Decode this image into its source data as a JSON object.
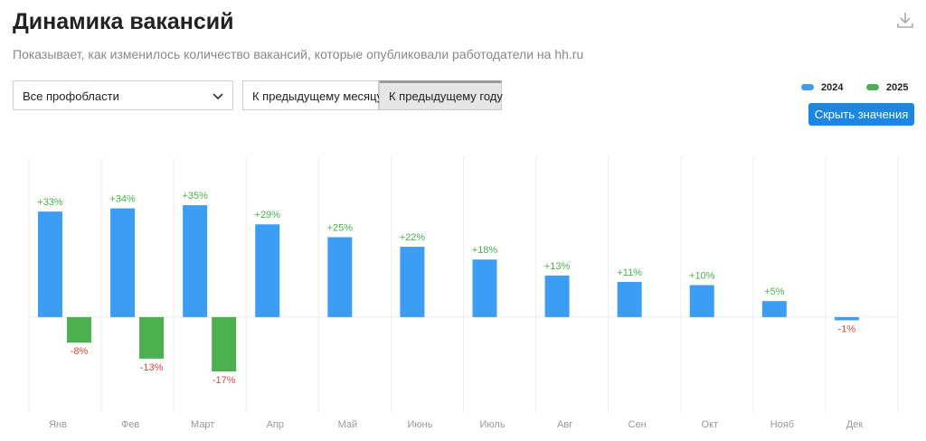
{
  "title": "Динамика вакансий",
  "subtitle": "Показывает, как изменилось количество вакансий, которые опубликовали работодатели на hh.ru",
  "filter": "Все профобласти",
  "toggle": [
    "К предыдущему месяцу",
    "К предыдущему году"
  ],
  "hide_button": "Скрыть значения",
  "chart_data": {
    "type": "bar",
    "categories": [
      "Янв",
      "Фев",
      "Март",
      "Апр",
      "Май",
      "Июнь",
      "Июль",
      "Авг",
      "Сен",
      "Окт",
      "Нояб",
      "Дек"
    ],
    "series": [
      {
        "name": "2024",
        "color": "#3d9df3",
        "values": [
          33,
          34,
          35,
          29,
          25,
          22,
          18,
          13,
          11,
          10,
          5,
          -1
        ],
        "value_labels": [
          "+33%",
          "+34%",
          "+35%",
          "+29%",
          "+25%",
          "+22%",
          "+18%",
          "+13%",
          "+11%",
          "+10%",
          "+5%",
          "-1%"
        ]
      },
      {
        "name": "2025",
        "color": "#4caf50",
        "values": [
          -8,
          -13,
          -17,
          null,
          null,
          null,
          null,
          null,
          null,
          null,
          null,
          null
        ],
        "value_labels": [
          "-8%",
          "-13%",
          "-17%",
          null,
          null,
          null,
          null,
          null,
          null,
          null,
          null,
          null
        ]
      }
    ],
    "positive_label_color": "#4caf50",
    "negative_label_color": "#e0463e",
    "ylim": [
      -30,
      50
    ],
    "yticks": [
      0
    ],
    "grid": true
  }
}
